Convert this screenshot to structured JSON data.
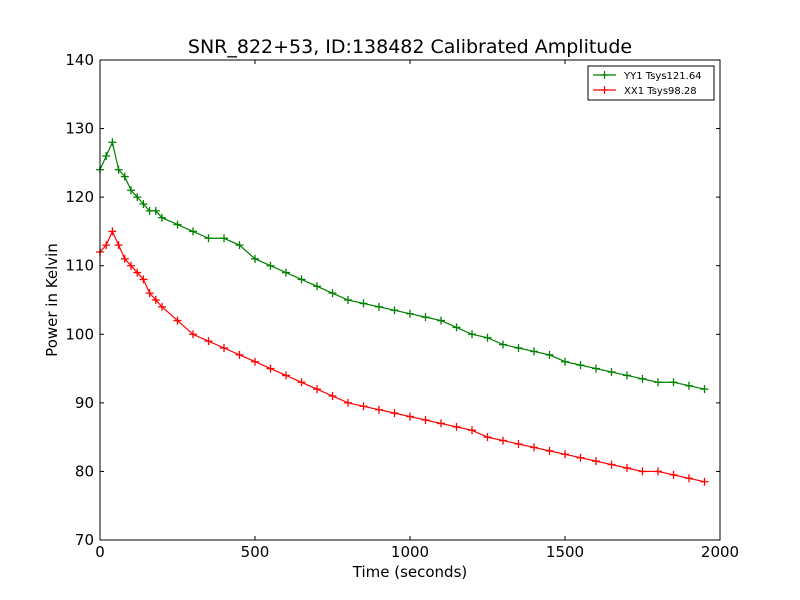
{
  "chart_data": {
    "type": "line",
    "title": "SNR_822+53, ID:138482 Calibrated Amplitude",
    "xlabel": "Time (seconds)",
    "ylabel": "Power in Kelvin",
    "xlim": [
      0,
      2000
    ],
    "ylim": [
      70,
      140
    ],
    "xticks": [
      0,
      500,
      1000,
      1500,
      2000
    ],
    "yticks": [
      70,
      80,
      90,
      100,
      110,
      120,
      130,
      140
    ],
    "grid": false,
    "legend_position": "top-right",
    "marker": "+",
    "series": [
      {
        "name": "YY1 Tsys121.64",
        "color": "#008000",
        "x": [
          0,
          20,
          40,
          60,
          80,
          100,
          120,
          140,
          160,
          180,
          200,
          250,
          300,
          350,
          400,
          450,
          500,
          550,
          600,
          650,
          700,
          750,
          800,
          850,
          900,
          950,
          1000,
          1050,
          1100,
          1150,
          1200,
          1250,
          1300,
          1350,
          1400,
          1450,
          1500,
          1550,
          1600,
          1650,
          1700,
          1750,
          1800,
          1850,
          1900,
          1950
        ],
        "values": [
          124,
          126,
          128,
          124,
          123,
          121,
          120,
          119,
          118,
          118,
          117,
          116,
          115,
          114,
          114,
          113,
          111,
          110,
          109,
          108,
          107,
          106,
          105,
          104.5,
          104,
          103.5,
          103,
          102.5,
          102,
          101,
          100,
          99.5,
          98.5,
          98,
          97.5,
          97,
          96,
          95.5,
          95,
          94.5,
          94,
          93.5,
          93,
          93,
          92.5,
          92
        ]
      },
      {
        "name": "XX1 Tsys98.28",
        "color": "#ff0000",
        "x": [
          0,
          20,
          40,
          60,
          80,
          100,
          120,
          140,
          160,
          180,
          200,
          250,
          300,
          350,
          400,
          450,
          500,
          550,
          600,
          650,
          700,
          750,
          800,
          850,
          900,
          950,
          1000,
          1050,
          1100,
          1150,
          1200,
          1250,
          1300,
          1350,
          1400,
          1450,
          1500,
          1550,
          1600,
          1650,
          1700,
          1750,
          1800,
          1850,
          1900,
          1950
        ],
        "values": [
          112,
          113,
          115,
          113,
          111,
          110,
          109,
          108,
          106,
          105,
          104,
          102,
          100,
          99,
          98,
          97,
          96,
          95,
          94,
          93,
          92,
          91,
          90,
          89.5,
          89,
          88.5,
          88,
          87.5,
          87,
          86.5,
          86,
          85,
          84.5,
          84,
          83.5,
          83,
          82.5,
          82,
          81.5,
          81,
          80.5,
          80,
          80,
          79.5,
          79,
          78.5
        ]
      }
    ]
  }
}
